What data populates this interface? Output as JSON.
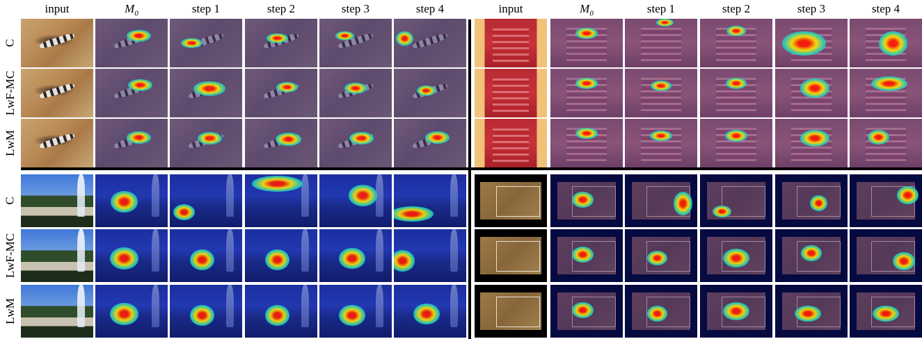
{
  "columns_left": [
    "input",
    "M0",
    "step 1",
    "step 2",
    "step 3",
    "step 4"
  ],
  "columns_right": [
    "input",
    "M0",
    "step 1",
    "step 2",
    "step 3",
    "step 4"
  ],
  "rows": [
    "C",
    "LwF-MC",
    "LwM"
  ],
  "m0_symbol": "M",
  "m0_subscript": "0",
  "panels": [
    {
      "name": "salamander",
      "bg": "salam"
    },
    {
      "name": "phone",
      "bg": "phone"
    },
    {
      "name": "fountain",
      "bg": "fount"
    },
    {
      "name": "field",
      "bg": "field"
    }
  ],
  "colors": {
    "heat_core": "#ff1a00",
    "heat_mid": "#ffe600",
    "heat_outer": "#20d0c0",
    "divider": "#000000"
  }
}
